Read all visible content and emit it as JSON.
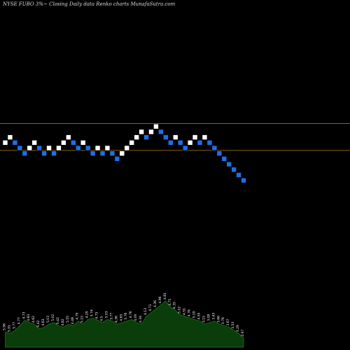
{
  "header": {
    "symbol": "NYSE FUBO",
    "change": "3%",
    "arrow": "~",
    "subtitle": "Closing Daily data",
    "chart_kind": "Renko",
    "site": "charts MunafaSutra.com"
  },
  "colors": {
    "background": "#000000",
    "up_brick": "#ffffff",
    "down_brick": "#1e6fe8",
    "resistance_line": "#b8860b",
    "volume_fill": "#0a3d0a",
    "volume_line": "#1f7a1f"
  },
  "chart_data": {
    "type": "renko",
    "bricks": [
      {
        "dir": "up",
        "level": 1
      },
      {
        "dir": "up",
        "level": 2
      },
      {
        "dir": "down",
        "level": 1
      },
      {
        "dir": "down",
        "level": 0
      },
      {
        "dir": "down",
        "level": -1
      },
      {
        "dir": "up",
        "level": 0
      },
      {
        "dir": "up",
        "level": 1
      },
      {
        "dir": "down",
        "level": 0
      },
      {
        "dir": "down",
        "level": -1
      },
      {
        "dir": "up",
        "level": 0
      },
      {
        "dir": "down",
        "level": -1
      },
      {
        "dir": "up",
        "level": 0
      },
      {
        "dir": "up",
        "level": 1
      },
      {
        "dir": "up",
        "level": 2
      },
      {
        "dir": "down",
        "level": 1
      },
      {
        "dir": "down",
        "level": 0
      },
      {
        "dir": "up",
        "level": 1
      },
      {
        "dir": "down",
        "level": 0
      },
      {
        "dir": "down",
        "level": -1
      },
      {
        "dir": "up",
        "level": 0
      },
      {
        "dir": "down",
        "level": -1
      },
      {
        "dir": "up",
        "level": 0
      },
      {
        "dir": "down",
        "level": -1
      },
      {
        "dir": "down",
        "level": -2
      },
      {
        "dir": "up",
        "level": -1
      },
      {
        "dir": "up",
        "level": 0
      },
      {
        "dir": "up",
        "level": 1
      },
      {
        "dir": "up",
        "level": 2
      },
      {
        "dir": "up",
        "level": 3
      },
      {
        "dir": "down",
        "level": 2
      },
      {
        "dir": "up",
        "level": 3
      },
      {
        "dir": "up",
        "level": 4
      },
      {
        "dir": "down",
        "level": 3
      },
      {
        "dir": "down",
        "level": 2
      },
      {
        "dir": "down",
        "level": 1
      },
      {
        "dir": "up",
        "level": 2
      },
      {
        "dir": "down",
        "level": 1
      },
      {
        "dir": "down",
        "level": 0
      },
      {
        "dir": "up",
        "level": 1
      },
      {
        "dir": "up",
        "level": 2
      },
      {
        "dir": "down",
        "level": 1
      },
      {
        "dir": "up",
        "level": 2
      },
      {
        "dir": "down",
        "level": 1
      },
      {
        "dir": "down",
        "level": 0
      },
      {
        "dir": "down",
        "level": -1
      },
      {
        "dir": "down",
        "level": -2
      },
      {
        "dir": "down",
        "level": -3
      },
      {
        "dir": "down",
        "level": -4
      },
      {
        "dir": "down",
        "level": -5
      },
      {
        "dir": "down",
        "level": -6
      }
    ],
    "resistance_levels": [
      4.5,
      -0.5
    ],
    "volume": {
      "values": [
        20,
        18,
        22,
        28,
        35,
        32,
        30,
        24,
        26,
        30,
        32,
        28,
        26,
        30,
        28,
        34,
        30,
        36,
        38,
        35,
        32,
        36,
        34,
        30,
        32,
        34,
        36,
        32,
        30,
        40,
        45,
        50,
        55,
        60,
        52,
        48,
        42,
        40,
        38,
        36,
        34,
        30,
        32,
        34,
        30,
        28,
        26,
        22,
        18,
        12
      ],
      "labels": [
        "5.96",
        "5.91",
        "5.77",
        "4.77",
        "4.73",
        "4.83",
        "4.62",
        "5.42",
        "4.63",
        "5.03",
        "5.02",
        "5.42",
        "4.82",
        "5.55",
        "4.48",
        "4.79",
        "5.15",
        "4.29",
        "5.74",
        "4.75",
        "4.5",
        "5.03",
        "5.77",
        "4.36",
        "4.65",
        "5.76",
        "4.76",
        "4.09",
        "4.34",
        "4.13",
        "4.71",
        "4.36",
        "4.96",
        "4.81",
        "4.75",
        "4.35",
        "5.02",
        "4.51",
        "4.76",
        "5.19",
        "4.55",
        "3.15",
        "3.08",
        "3.43",
        "3.66",
        "3.76",
        "3.67",
        "3.53",
        "3.29",
        "2.97"
      ]
    }
  }
}
